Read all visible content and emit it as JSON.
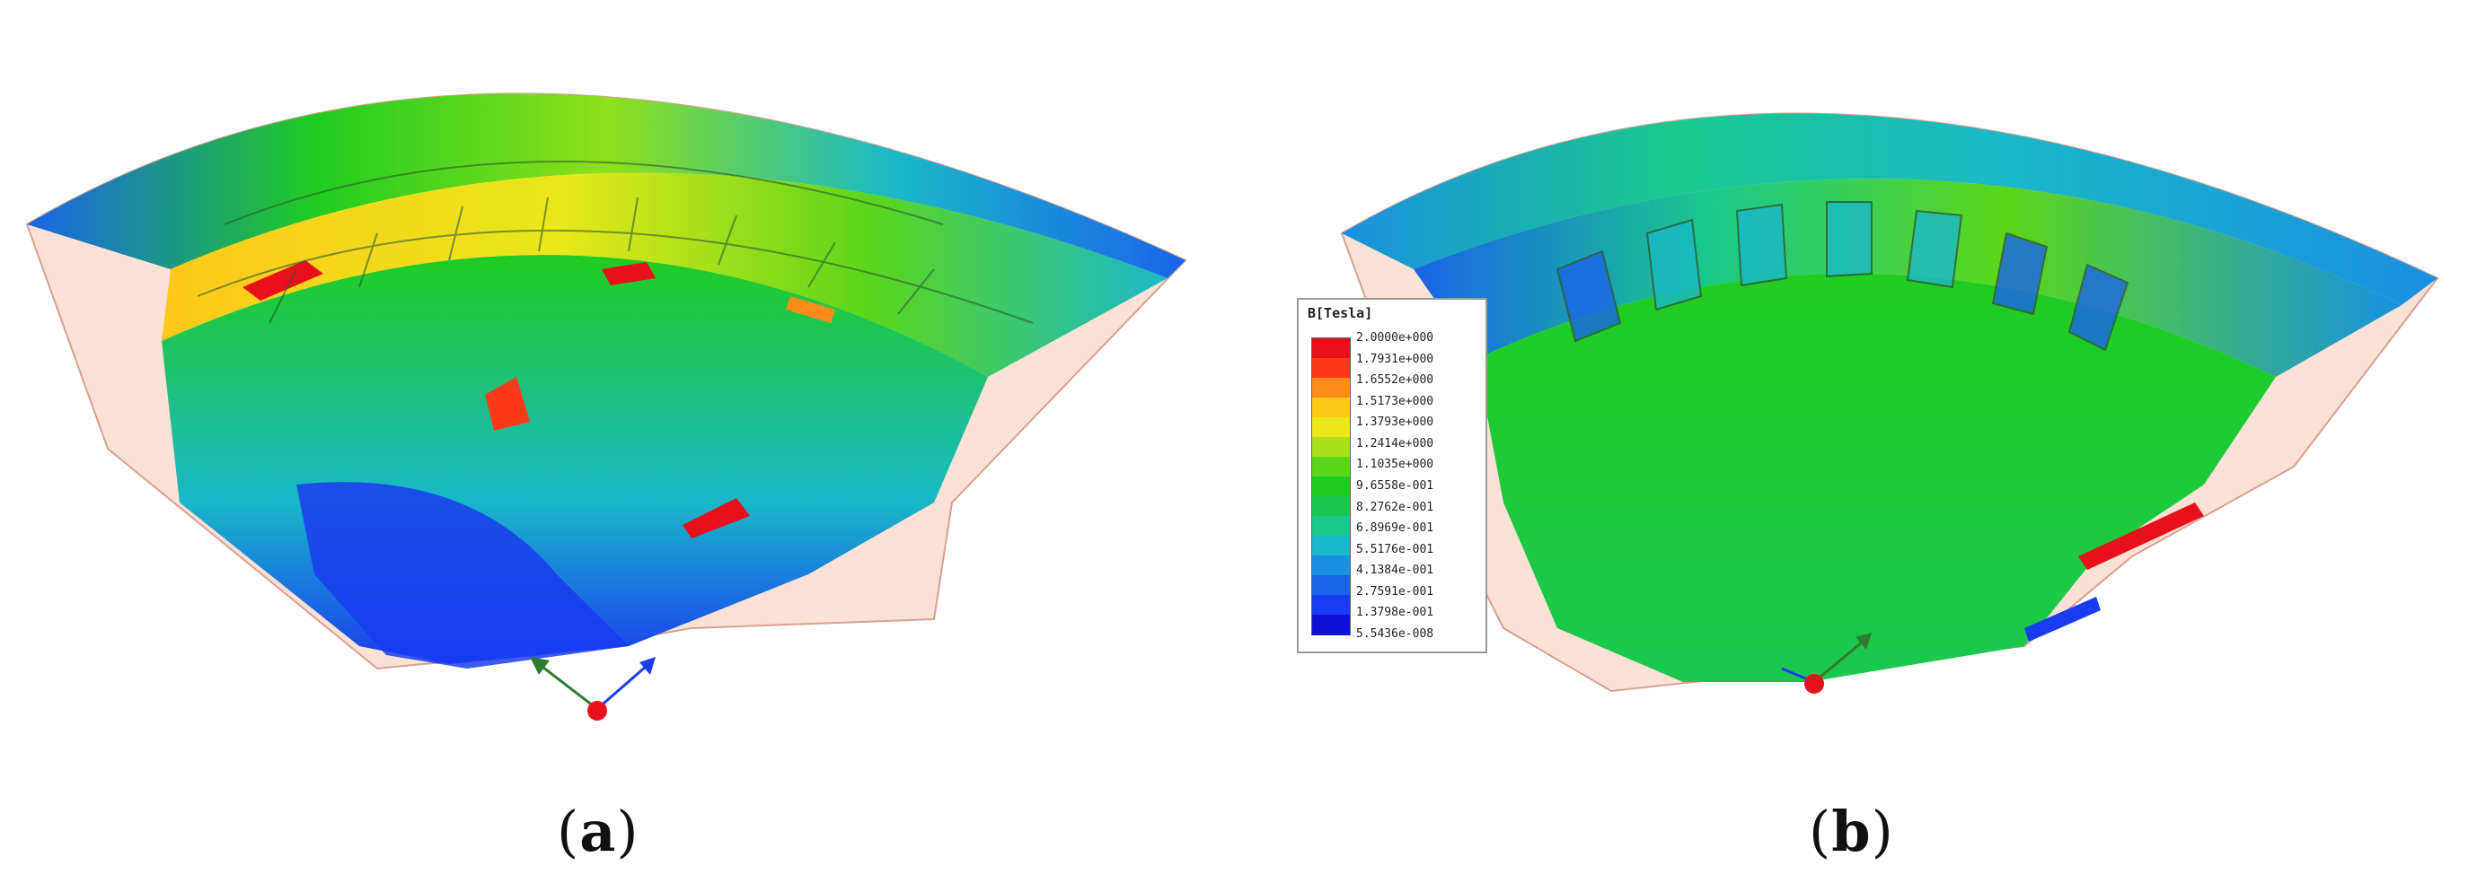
{
  "panels": [
    {
      "id": "a",
      "caption": "a"
    },
    {
      "id": "b",
      "caption": "b"
    }
  ],
  "legend": {
    "title": "B[Tesla]",
    "values": [
      "2.0000e+000",
      "1.7931e+000",
      "1.6552e+000",
      "1.5173e+000",
      "1.3793e+000",
      "1.2414e+000",
      "1.1035e+000",
      "9.6558e-001",
      "8.2762e-001",
      "6.8969e-001",
      "5.5176e-001",
      "4.1384e-001",
      "2.7591e-001",
      "1.3798e-001",
      "5.5436e-008"
    ],
    "colors": [
      "#e8101a",
      "#ff3a1a",
      "#ff8c1a",
      "#ffc81a",
      "#e8e81a",
      "#a8e01a",
      "#5cd61a",
      "#20cc20",
      "#1ac850",
      "#1ac88c",
      "#1ab8c8",
      "#1a90e0",
      "#1a64e8",
      "#1a3cf0",
      "#1010d8"
    ]
  },
  "colors": {
    "outline": "#d9a090",
    "background": "#ffffff",
    "shell": "#fbe1d6"
  }
}
